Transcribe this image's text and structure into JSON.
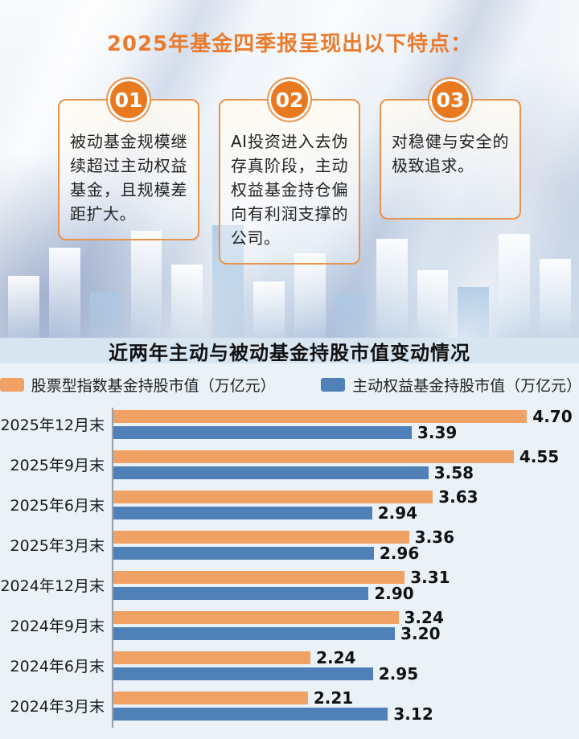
{
  "header": {
    "title": "2025年基金四季报呈现出以下特点："
  },
  "features": [
    {
      "number": "01",
      "text": "被动基金规模继续超过主动权益基金，且规模差距扩大。"
    },
    {
      "number": "02",
      "text": "AI投资进入去伪存真阶段，主动权益基金持仓偏向有利润支撑的公司。"
    },
    {
      "number": "03",
      "text": "对稳健与安全的极致追求。"
    }
  ],
  "chart_data": {
    "type": "bar",
    "orientation": "horizontal",
    "title": "近两年主动与被动基金持股市值变动情况",
    "categories": [
      "2025年12月末",
      "2025年9月末",
      "2025年6月末",
      "2025年3月末",
      "2024年12月末",
      "2024年9月末",
      "2024年6月末",
      "2024年3月末"
    ],
    "series": [
      {
        "name": "股票型指数基金持股市值（万亿元）",
        "color": "#F0A164",
        "values": [
          4.7,
          4.55,
          3.63,
          3.36,
          3.31,
          3.24,
          2.24,
          2.21
        ]
      },
      {
        "name": "主动权益基金持股市值（万亿元）",
        "color": "#5080B8",
        "values": [
          3.39,
          3.58,
          2.94,
          2.96,
          2.9,
          3.2,
          2.95,
          3.12
        ]
      }
    ],
    "value_format": "2dp",
    "xlim": [
      0,
      5.2
    ],
    "legend_position": "top",
    "grid": false
  },
  "colors": {
    "accent_orange": "#E87B2E",
    "badge_orange": "#E8791E",
    "card_border": "#E8934C",
    "title_band_bg": "#D6E5F0",
    "chart_bg": "#EAF2F7",
    "bar_orange": "#F0A164",
    "bar_blue": "#5080B8",
    "text_dark": "#1A1A1A"
  }
}
